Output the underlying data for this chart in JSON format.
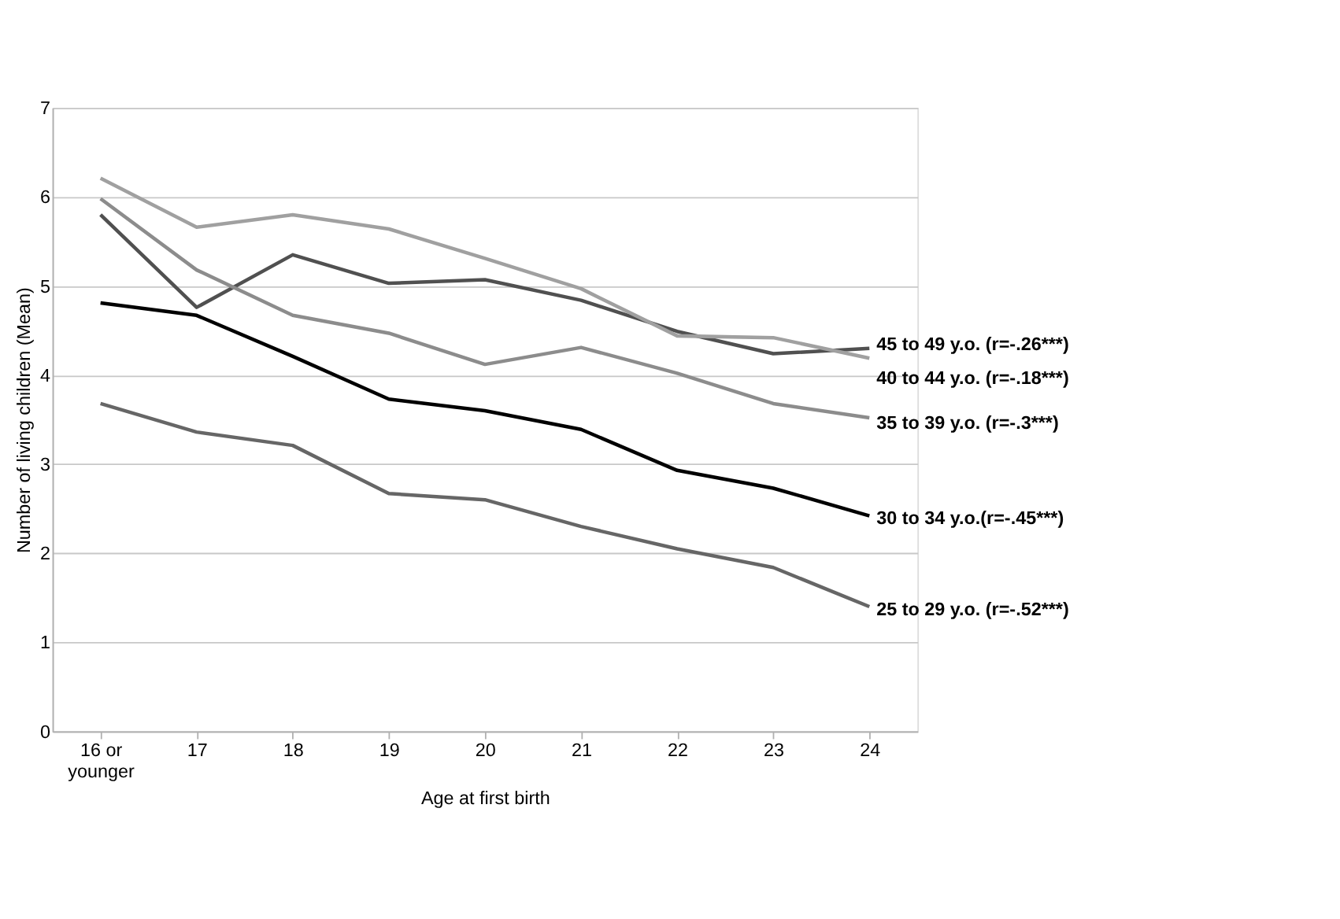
{
  "chart_data": {
    "type": "line",
    "xlabel": "Age at first birth",
    "ylabel": "Number of living children (Mean)",
    "categories": [
      "16 or younger",
      "17",
      "18",
      "19",
      "20",
      "21",
      "22",
      "23",
      "24"
    ],
    "series": [
      {
        "name": "45 to 49 y.o. (r=-.26***)",
        "color": "#505050",
        "values": [
          5.8,
          4.76,
          5.35,
          5.03,
          5.07,
          4.84,
          4.49,
          4.24,
          4.3
        ]
      },
      {
        "name": "40 to 44 y.o. (r=-.18***)",
        "color": "#a0a0a0",
        "values": [
          6.21,
          5.66,
          5.8,
          5.64,
          5.31,
          4.97,
          4.44,
          4.42,
          4.19
        ]
      },
      {
        "name": "35 to 39 y.o. (r=-.3***)",
        "color": "#8c8c8c",
        "values": [
          5.98,
          5.18,
          4.67,
          4.47,
          4.12,
          4.31,
          4.02,
          3.68,
          3.52
        ]
      },
      {
        "name": "30 to 34 y.o.(r=-.45***)",
        "color": "#000000",
        "values": [
          4.81,
          4.67,
          4.21,
          3.73,
          3.6,
          3.39,
          2.93,
          2.73,
          2.42
        ]
      },
      {
        "name": "25 to 29 y.o. (r=-.52***)",
        "color": "#666666",
        "values": [
          3.68,
          3.36,
          3.21,
          2.67,
          2.6,
          2.3,
          2.05,
          1.84,
          1.4
        ]
      }
    ],
    "ylim": [
      0,
      7
    ],
    "yticks": [
      0,
      1,
      2,
      3,
      4,
      5,
      6,
      7
    ],
    "grid": "y",
    "legend": false,
    "marker": "none",
    "line_style": "solid"
  }
}
